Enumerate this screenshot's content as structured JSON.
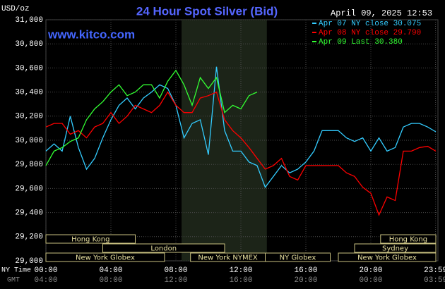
{
  "chart_data": {
    "type": "line",
    "title": "24 Hour Spot Silver (Bid)",
    "timestamp": "April 09, 2025 12:53",
    "unit_label": "USD/oz",
    "watermark": "www.kitco.com",
    "x": [
      0,
      0.5,
      1,
      1.5,
      2,
      2.5,
      3,
      3.5,
      4,
      4.5,
      5,
      5.5,
      6,
      6.5,
      7,
      7.5,
      8,
      8.5,
      9,
      9.5,
      10,
      10.5,
      11,
      11.5,
      12,
      12.5,
      13,
      13.5,
      14,
      14.5,
      15,
      15.5,
      16,
      16.5,
      17,
      17.5,
      18,
      18.5,
      19,
      19.5,
      20,
      20.5,
      21,
      21.5,
      22,
      22.5,
      23,
      23.5,
      24
    ],
    "xlim": [
      0,
      24
    ],
    "xticks": [
      {
        "value": 0,
        "label": "00:00"
      },
      {
        "value": 4,
        "label": "04:00"
      },
      {
        "value": 8,
        "label": "08:00"
      },
      {
        "value": 12,
        "label": "12:00"
      },
      {
        "value": 16,
        "label": "16:00"
      },
      {
        "value": 20,
        "label": "20:00"
      },
      {
        "value": 23.983,
        "label": "23:59"
      }
    ],
    "gmt_ticks": [
      {
        "value": 0,
        "label": "04:00"
      },
      {
        "value": 4,
        "label": "08:00"
      },
      {
        "value": 8,
        "label": "12:00"
      },
      {
        "value": 12,
        "label": "16:00"
      },
      {
        "value": 16,
        "label": "20:00"
      },
      {
        "value": 20,
        "label": "00:00"
      },
      {
        "value": 23.983,
        "label": "03:59"
      }
    ],
    "xtick_row_labels": [
      "NY Time",
      "GMT"
    ],
    "ylim": [
      29000,
      31000
    ],
    "yticks": [
      {
        "value": 29000,
        "label": "29,000"
      },
      {
        "value": 29200,
        "label": "29,200"
      },
      {
        "value": 29400,
        "label": "29,400"
      },
      {
        "value": 29600,
        "label": "29,600"
      },
      {
        "value": 29800,
        "label": "29,800"
      },
      {
        "value": 30000,
        "label": "30,000"
      },
      {
        "value": 30200,
        "label": "30,200"
      },
      {
        "value": 30400,
        "label": "30,400"
      },
      {
        "value": 30600,
        "label": "30,600"
      },
      {
        "value": 30800,
        "label": "30,800"
      },
      {
        "value": 31000,
        "label": "31,000"
      }
    ],
    "grid": true,
    "legend": "top-right",
    "highlight": [
      8.35,
      13.6
    ],
    "sessions": [
      {
        "name": "Hong Kong",
        "start": 0,
        "end": 5.5,
        "row": 0
      },
      {
        "name": "London",
        "start": 3.5,
        "end": 11,
        "row": 1
      },
      {
        "name": "New York Globex",
        "start": 0,
        "end": 7.3,
        "row": 2
      },
      {
        "name": "New York NYMEX",
        "start": 8.9,
        "end": 13.5,
        "row": 2
      },
      {
        "name": "NY Globex",
        "start": 13.5,
        "end": 17.5,
        "row": 2
      },
      {
        "name": "Hong Kong",
        "start": 20.6,
        "end": 24,
        "row": 0
      },
      {
        "name": "Sydney",
        "start": 19,
        "end": 24,
        "row": 1
      },
      {
        "name": "New York Globex",
        "start": 18,
        "end": 24,
        "row": 2
      }
    ],
    "series": [
      {
        "name": "Apr 07 NY close 30.075",
        "color": "#33ccff",
        "values": [
          29910,
          29970,
          29910,
          30200,
          29940,
          29760,
          29850,
          30020,
          30170,
          30290,
          30350,
          30260,
          30350,
          30400,
          30460,
          30430,
          30290,
          30020,
          30140,
          30170,
          29880,
          30610,
          30080,
          29910,
          29910,
          29820,
          29790,
          29610,
          29700,
          29790,
          29730,
          29760,
          29820,
          29910,
          30080,
          30080,
          30080,
          30020,
          29990,
          30020,
          29910,
          30020,
          29910,
          29940,
          30110,
          30140,
          30140,
          30110,
          30070
        ]
      },
      {
        "name": "Apr 08 NY close 29.790",
        "color": "#ff0000",
        "values": [
          30110,
          30140,
          30140,
          30050,
          30080,
          30020,
          30110,
          30140,
          30230,
          30140,
          30200,
          30290,
          30260,
          30230,
          30290,
          30400,
          30290,
          30230,
          30230,
          30350,
          30370,
          30400,
          30170,
          30080,
          30020,
          29940,
          29850,
          29760,
          29790,
          29850,
          29700,
          29670,
          29790,
          29790,
          29790,
          29790,
          29790,
          29730,
          29700,
          29610,
          29560,
          29380,
          29530,
          29500,
          29910,
          29910,
          29940,
          29950,
          29910
        ]
      },
      {
        "name": "Apr 09 Last 30.380",
        "color": "#33ff33",
        "values": [
          29790,
          29910,
          29940,
          29990,
          30020,
          30170,
          30260,
          30320,
          30400,
          30460,
          30370,
          30400,
          30460,
          30460,
          30350,
          30490,
          30580,
          30460,
          30290,
          30520,
          30430,
          30520,
          30230,
          30290,
          30260,
          30370,
          30400,
          null,
          null,
          null,
          null,
          null,
          null,
          null,
          null,
          null,
          null,
          null,
          null,
          null,
          null,
          null,
          null,
          null,
          null,
          null,
          null,
          null,
          null
        ]
      }
    ]
  }
}
